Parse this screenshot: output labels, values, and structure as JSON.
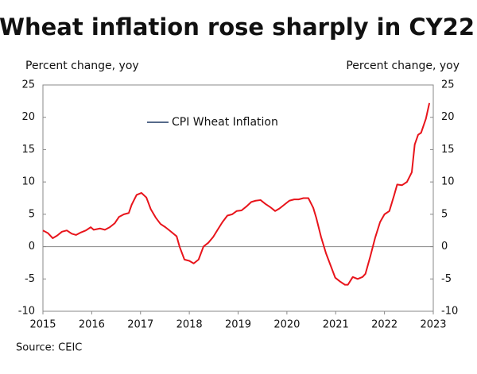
{
  "chart_data": {
    "type": "line",
    "title": "Wheat inflation rose sharply in CY22",
    "y_label": "Percent change, yoy",
    "y2_label": "Percent change, yoy",
    "source": "Source: CEIC",
    "x": [
      2015.0,
      2015.1,
      2015.2,
      2015.29,
      2015.39,
      2015.49,
      2015.59,
      2015.68,
      2015.78,
      2015.88,
      2015.98,
      2016.04,
      2016.17,
      2016.27,
      2016.37,
      2016.47,
      2016.56,
      2016.66,
      2016.76,
      2016.82,
      2016.92,
      2017.02,
      2017.12,
      2017.21,
      2017.31,
      2017.41,
      2017.51,
      2017.61,
      2017.74,
      2017.8,
      2017.9,
      2018.0,
      2018.09,
      2018.19,
      2018.29,
      2018.39,
      2018.49,
      2018.58,
      2018.68,
      2018.78,
      2018.88,
      2018.97,
      2019.07,
      2019.17,
      2019.27,
      2019.36,
      2019.46,
      2019.56,
      2019.66,
      2019.76,
      2019.85,
      2019.95,
      2020.05,
      2020.15,
      2020.24,
      2020.34,
      2020.44,
      2020.54,
      2020.6,
      2020.7,
      2020.8,
      2020.9,
      2020.99,
      2021.09,
      2021.19,
      2021.25,
      2021.35,
      2021.45,
      2021.55,
      2021.61,
      2021.71,
      2021.81,
      2021.91,
      2022.0,
      2022.1,
      2022.2,
      2022.26,
      2022.36,
      2022.46,
      2022.56,
      2022.62,
      2022.69,
      2022.75,
      2022.85,
      2022.92
    ],
    "series": [
      {
        "name": "CPI Wheat Inflation",
        "color": "#e8141b",
        "values": [
          2.5,
          2.1,
          1.3,
          1.7,
          2.3,
          2.5,
          2.0,
          1.8,
          2.2,
          2.5,
          3.0,
          2.6,
          2.8,
          2.6,
          3.0,
          3.6,
          4.6,
          5.0,
          5.2,
          6.5,
          8.0,
          8.3,
          7.6,
          5.8,
          4.5,
          3.5,
          3.0,
          2.4,
          1.6,
          0,
          -2.0,
          -2.2,
          -2.6,
          -2.0,
          0,
          0.6,
          1.5,
          2.6,
          3.8,
          4.8,
          5.0,
          5.5,
          5.6,
          6.2,
          6.9,
          7.1,
          7.2,
          6.6,
          6.1,
          5.5,
          5.9,
          6.5,
          7.1,
          7.3,
          7.3,
          7.5,
          7.5,
          6.0,
          4.5,
          1.5,
          -1.0,
          -3.0,
          -4.8,
          -5.4,
          -5.9,
          -5.9,
          -4.7,
          -5.0,
          -4.7,
          -4.2,
          -1.5,
          1.4,
          3.8,
          5.0,
          5.5,
          8.0,
          9.6,
          9.5,
          10.0,
          11.5,
          15.8,
          17.3,
          17.6,
          19.8,
          22.2
        ]
      }
    ],
    "legend_line_color": "#1f3864",
    "xlim": [
      2015,
      2023
    ],
    "xticks": [
      2015,
      2016,
      2017,
      2018,
      2019,
      2020,
      2021,
      2022,
      2023
    ],
    "ylim": [
      -10,
      25
    ],
    "yticks": [
      -10,
      -5,
      0,
      5,
      10,
      15,
      20,
      25
    ],
    "y2lim": [
      -10,
      25
    ],
    "y2ticks": [
      -10,
      -5,
      0,
      5,
      10,
      15,
      20,
      25
    ]
  }
}
